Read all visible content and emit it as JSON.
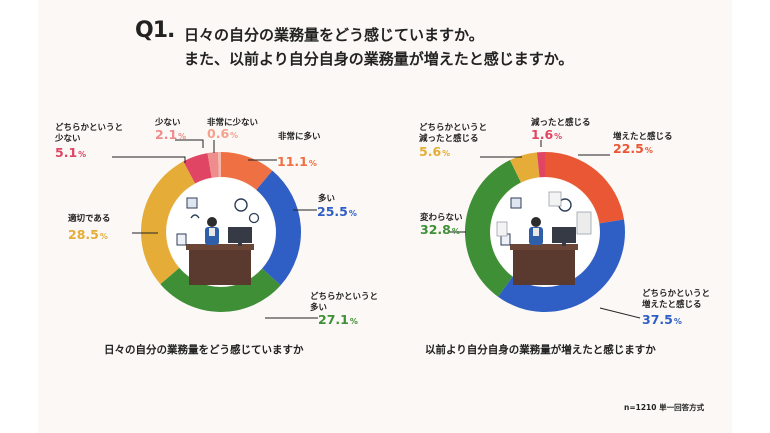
{
  "title": {
    "q_label": "Q1.",
    "line1": "日々の自分の業務量をどう感じていますか。",
    "line2": "また、以前より自分自身の業務量が増えたと感じますか。"
  },
  "note": "n=1210  単一回答方式",
  "chart_data": [
    {
      "type": "pie",
      "subtype": "donut",
      "title": "日々の自分の業務量をどう感じていますか",
      "unit": "%",
      "slices": [
        {
          "label": "非常に多い",
          "value": 11.1,
          "value_text": "11.1",
          "color": "#ee7043",
          "label_color": "#ee7043"
        },
        {
          "label": "多い",
          "value": 25.5,
          "value_text": "25.5",
          "color": "#2f5fc4",
          "label_color": "#2f5fc4"
        },
        {
          "label": "どちらかというと多い",
          "label_lines": [
            "どちらかというと",
            "多い"
          ],
          "value": 27.1,
          "value_text": "27.1",
          "color": "#3f8f37",
          "label_color": "#3f8f37"
        },
        {
          "label": "適切である",
          "value": 28.5,
          "value_text": "28.5",
          "color": "#e5ad37",
          "label_color": "#e5ad37"
        },
        {
          "label": "どちらかというと少ない",
          "label_lines": [
            "どちらかというと",
            "少ない"
          ],
          "value": 5.1,
          "value_text": "5.1",
          "color": "#e04563",
          "label_color": "#e04563"
        },
        {
          "label": "少ない",
          "value": 2.1,
          "value_text": "2.1",
          "color": "#ef8c8c",
          "label_color": "#ef8c8c"
        },
        {
          "label": "非常に少ない",
          "value": 0.6,
          "value_text": "0.6",
          "color": "#f4b7a8",
          "label_color": "#f4a28e"
        }
      ]
    },
    {
      "type": "pie",
      "subtype": "donut",
      "title": "以前より自分自身の業務量が増えたと感じますか",
      "unit": "%",
      "slices": [
        {
          "label": "増えたと感じる",
          "value": 22.5,
          "value_text": "22.5",
          "color": "#ea5734",
          "label_color": "#ea5734"
        },
        {
          "label": "どちらかというと増えたと感じる",
          "label_lines": [
            "どちらかというと",
            "増えたと感じる"
          ],
          "value": 37.5,
          "value_text": "37.5",
          "color": "#2f5fc4",
          "label_color": "#2f5fc4"
        },
        {
          "label": "変わらない",
          "value": 32.8,
          "value_text": "32.8",
          "color": "#3f8f37",
          "label_color": "#3f8f37"
        },
        {
          "label": "どちらかというと減ったと感じる",
          "label_lines": [
            "どちらかというと",
            "減ったと感じる"
          ],
          "value": 5.6,
          "value_text": "5.6",
          "color": "#e5ad37",
          "label_color": "#e5ad37"
        },
        {
          "label": "減ったと感じる",
          "value": 1.6,
          "value_text": "1.6",
          "color": "#e04563",
          "label_color": "#e04563"
        }
      ]
    }
  ]
}
